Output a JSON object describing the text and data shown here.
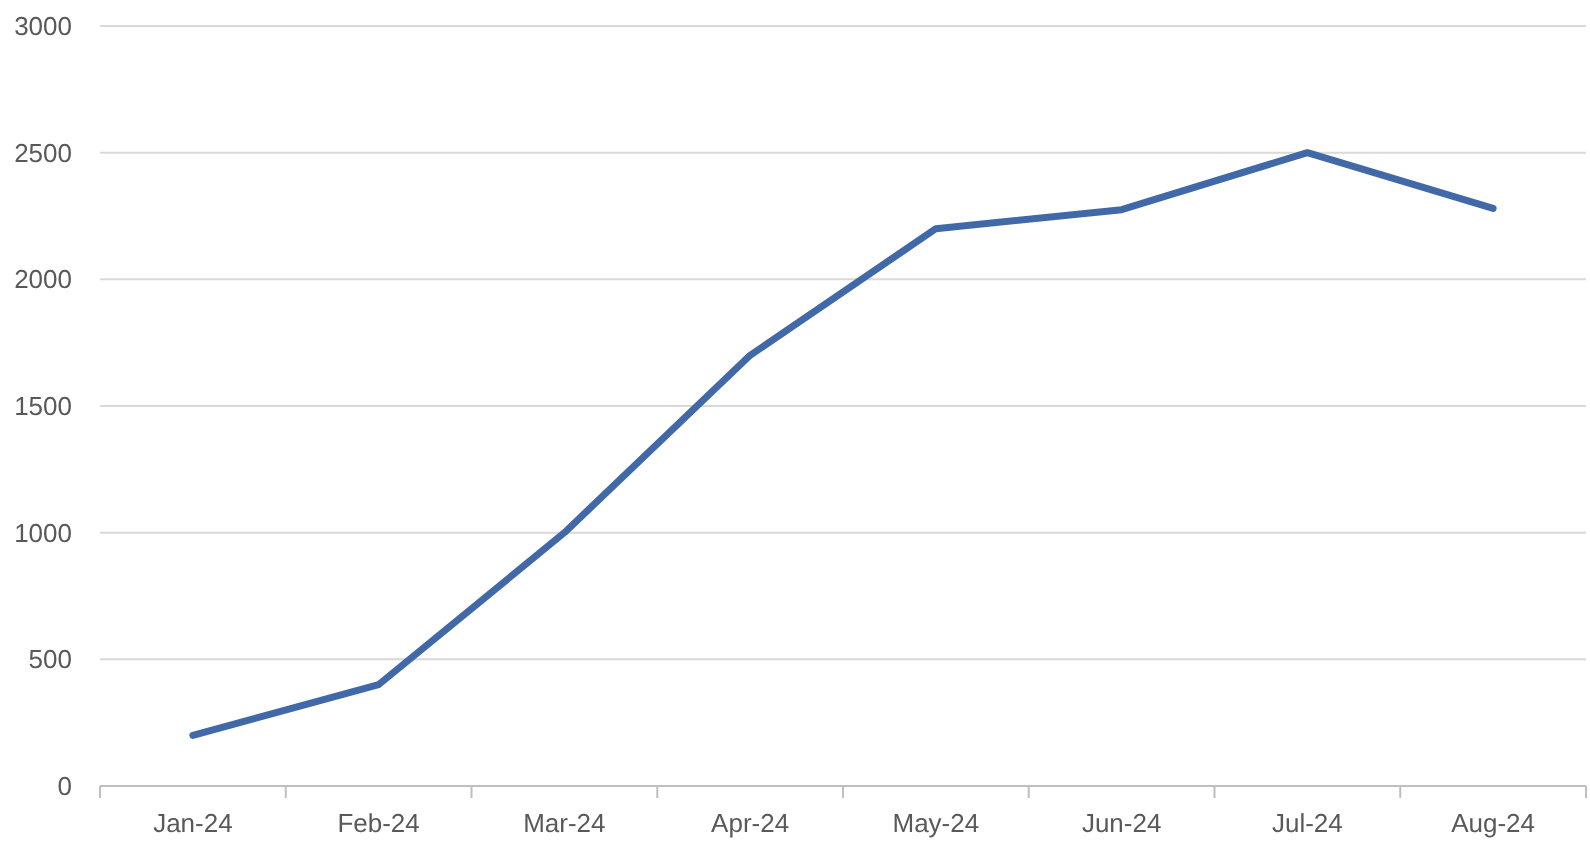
{
  "chart_data": {
    "type": "line",
    "categories": [
      "Jan-24",
      "Feb-24",
      "Mar-24",
      "Apr-24",
      "May-24",
      "Jun-24",
      "Jul-24",
      "Aug-24"
    ],
    "series": [
      {
        "color": "#4169a8",
        "values": [
          200,
          400,
          1000,
          1700,
          2200,
          2275,
          2500,
          2280
        ]
      }
    ],
    "ylim": [
      0,
      3000
    ],
    "yticks": [
      0,
      500,
      1000,
      1500,
      2000,
      2500,
      3000
    ],
    "grid": "y",
    "marker": "none",
    "line_style": "solid"
  }
}
